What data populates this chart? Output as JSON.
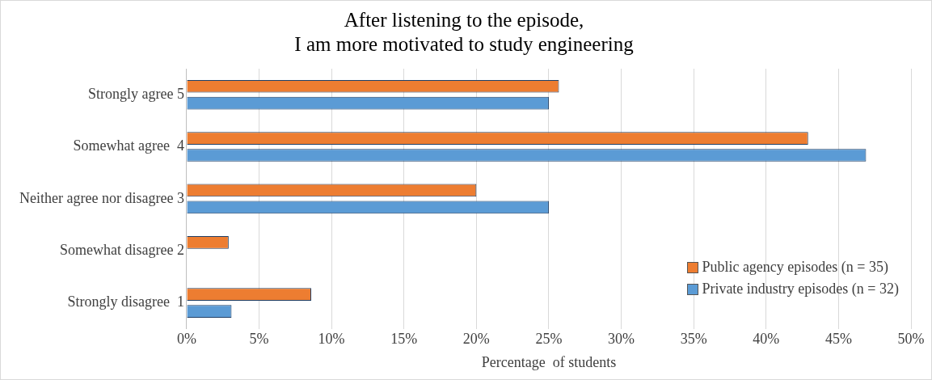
{
  "chart_data": {
    "type": "bar",
    "orientation": "horizontal",
    "title": "After listening to the episode,\nI am more motivated to study engineering",
    "xlabel": "Percentage  of students",
    "categories": [
      "Strongly agree 5",
      "Somewhat agree  4",
      "Neither agree nor disagree 3",
      "Somewhat disagree 2",
      "Strongly disagree  1"
    ],
    "series": [
      {
        "name": "Public agency episodes (n = 35)",
        "color": "#ed7d31",
        "values": [
          25.7,
          42.9,
          20.0,
          2.9,
          8.6
        ]
      },
      {
        "name": "Private industry episodes (n = 32)",
        "color": "#5b9bd5",
        "values": [
          25.0,
          46.9,
          25.0,
          0,
          3.1
        ]
      }
    ],
    "xlim": [
      0,
      50
    ],
    "xticks": [
      {
        "value": 0,
        "label": "0%"
      },
      {
        "value": 5,
        "label": "5%"
      },
      {
        "value": 10,
        "label": "10%"
      },
      {
        "value": 15,
        "label": "15%"
      },
      {
        "value": 20,
        "label": "20%"
      },
      {
        "value": 25,
        "label": "25%"
      },
      {
        "value": 30,
        "label": "30%"
      },
      {
        "value": 35,
        "label": "35%"
      },
      {
        "value": 40,
        "label": "40%"
      },
      {
        "value": 45,
        "label": "45%"
      },
      {
        "value": 50,
        "label": "50%"
      }
    ],
    "grid": "x",
    "legend": "bottom right"
  }
}
